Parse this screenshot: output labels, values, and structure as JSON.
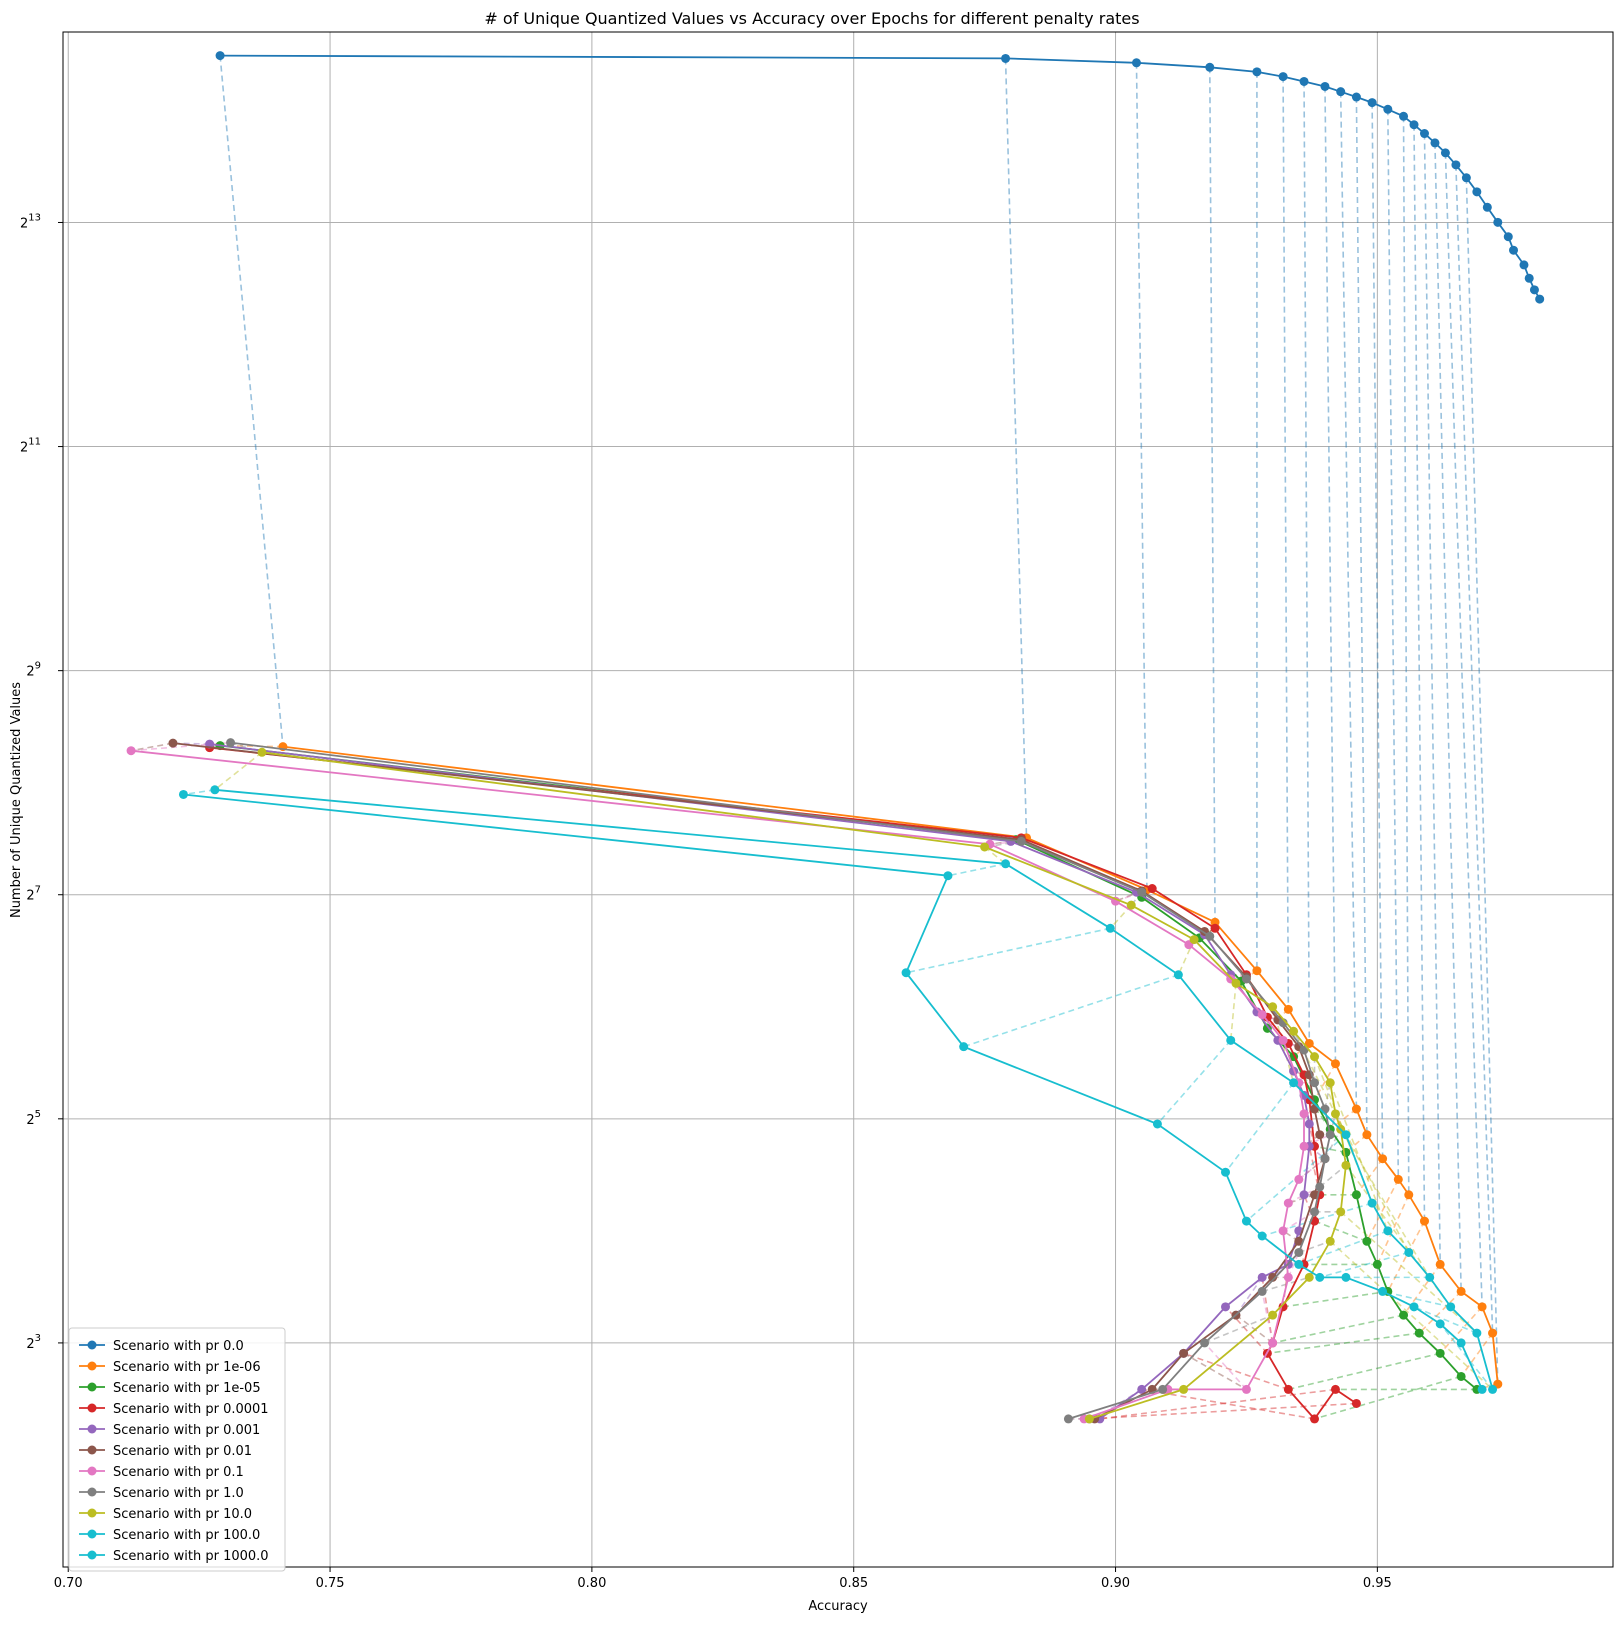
{
  "chart_data": {
    "type": "line",
    "title": "# of Unique Quantized Values vs Accuracy over Epochs for different penalty rates",
    "xlabel": "Accuracy",
    "ylabel": "Number of Unique Quantized Values",
    "xlim": [
      0.699,
      0.995
    ],
    "ylim_log2": [
      1.0,
      14.7
    ],
    "y_scale": "log2",
    "grid": true,
    "legend_position": "lower-left",
    "x_ticks": [
      {
        "value": 0.7,
        "label": "0.70"
      },
      {
        "value": 0.75,
        "label": "0.75"
      },
      {
        "value": 0.8,
        "label": "0.80"
      },
      {
        "value": 0.85,
        "label": "0.85"
      },
      {
        "value": 0.9,
        "label": "0.90"
      },
      {
        "value": 0.95,
        "label": "0.95"
      }
    ],
    "y_ticks": [
      {
        "exp": 3,
        "base": "2",
        "sup": "3"
      },
      {
        "exp": 5,
        "base": "2",
        "sup": "5"
      },
      {
        "exp": 7,
        "base": "2",
        "sup": "7"
      },
      {
        "exp": 9,
        "base": "2",
        "sup": "9"
      },
      {
        "exp": 11,
        "base": "2",
        "sup": "11"
      },
      {
        "exp": 13,
        "base": "2",
        "sup": "13"
      }
    ],
    "series": [
      {
        "name": "Scenario with pr 0.0",
        "color": "#1f77b4",
        "points": [
          [
            0.729,
            23000
          ],
          [
            0.879,
            22600
          ],
          [
            0.904,
            22000
          ],
          [
            0.918,
            21400
          ],
          [
            0.927,
            20800
          ],
          [
            0.932,
            20200
          ],
          [
            0.936,
            19600
          ],
          [
            0.94,
            19000
          ],
          [
            0.943,
            18400
          ],
          [
            0.946,
            17800
          ],
          [
            0.949,
            17200
          ],
          [
            0.952,
            16500
          ],
          [
            0.955,
            15800
          ],
          [
            0.957,
            15000
          ],
          [
            0.959,
            14200
          ],
          [
            0.961,
            13400
          ],
          [
            0.963,
            12600
          ],
          [
            0.965,
            11700
          ],
          [
            0.967,
            10800
          ],
          [
            0.969,
            9900
          ],
          [
            0.971,
            9000
          ],
          [
            0.973,
            8200
          ],
          [
            0.975,
            7500
          ],
          [
            0.976,
            6900
          ],
          [
            0.978,
            6300
          ],
          [
            0.979,
            5800
          ],
          [
            0.98,
            5400
          ],
          [
            0.981,
            5100
          ]
        ]
      },
      {
        "name": "Scenario with pr 1e-06",
        "color": "#ff7f0e",
        "points": [
          [
            0.741,
            320
          ],
          [
            0.883,
            182
          ],
          [
            0.906,
            132
          ],
          [
            0.919,
            108
          ],
          [
            0.927,
            80
          ],
          [
            0.933,
            63
          ],
          [
            0.937,
            51
          ],
          [
            0.942,
            45
          ],
          [
            0.946,
            34
          ],
          [
            0.948,
            29
          ],
          [
            0.951,
            25
          ],
          [
            0.954,
            22
          ],
          [
            0.956,
            20
          ],
          [
            0.959,
            17
          ],
          [
            0.962,
            13
          ],
          [
            0.966,
            11
          ],
          [
            0.97,
            10
          ],
          [
            0.972,
            8.5
          ],
          [
            0.973,
            6.2
          ]
        ]
      },
      {
        "name": "Scenario with pr 1e-05",
        "color": "#2ca02c",
        "points": [
          [
            0.729,
            322
          ],
          [
            0.881,
            180
          ],
          [
            0.905,
            126
          ],
          [
            0.916,
            98
          ],
          [
            0.924,
            75
          ],
          [
            0.929,
            56
          ],
          [
            0.934,
            47
          ],
          [
            0.938,
            36
          ],
          [
            0.941,
            30
          ],
          [
            0.944,
            26
          ],
          [
            0.946,
            20
          ],
          [
            0.948,
            15
          ],
          [
            0.95,
            13
          ],
          [
            0.952,
            11
          ],
          [
            0.955,
            9.5
          ],
          [
            0.958,
            8.5
          ],
          [
            0.962,
            7.5
          ],
          [
            0.966,
            6.5
          ],
          [
            0.969,
            6
          ]
        ]
      },
      {
        "name": "Scenario with pr 0.0001",
        "color": "#d62728",
        "points": [
          [
            0.727,
            318
          ],
          [
            0.882,
            182
          ],
          [
            0.907,
            133
          ],
          [
            0.919,
            104
          ],
          [
            0.925,
            78
          ],
          [
            0.929,
            60
          ],
          [
            0.933,
            51
          ],
          [
            0.936,
            42
          ],
          [
            0.937,
            36
          ],
          [
            0.938,
            27
          ],
          [
            0.939,
            20
          ],
          [
            0.938,
            17
          ],
          [
            0.936,
            13
          ],
          [
            0.932,
            10
          ],
          [
            0.93,
            8
          ],
          [
            0.929,
            7.5
          ],
          [
            0.933,
            6
          ],
          [
            0.938,
            5
          ],
          [
            0.942,
            6
          ],
          [
            0.946,
            5.5
          ]
        ]
      },
      {
        "name": "Scenario with pr 0.001",
        "color": "#9467bd",
        "points": [
          [
            0.727,
            325
          ],
          [
            0.88,
            178
          ],
          [
            0.904,
            130
          ],
          [
            0.917,
            100
          ],
          [
            0.922,
            78
          ],
          [
            0.927,
            62
          ],
          [
            0.931,
            52
          ],
          [
            0.934,
            43
          ],
          [
            0.936,
            37
          ],
          [
            0.937,
            31
          ],
          [
            0.937,
            27
          ],
          [
            0.936,
            20
          ],
          [
            0.935,
            16
          ],
          [
            0.933,
            13
          ],
          [
            0.928,
            12
          ],
          [
            0.921,
            10
          ],
          [
            0.913,
            7.5
          ],
          [
            0.905,
            6
          ],
          [
            0.897,
            5
          ],
          [
            0.895,
            5
          ]
        ]
      },
      {
        "name": "Scenario with pr 0.01",
        "color": "#8c564b",
        "points": [
          [
            0.72,
            327
          ],
          [
            0.882,
            180
          ],
          [
            0.905,
            131
          ],
          [
            0.917,
            102
          ],
          [
            0.925,
            77
          ],
          [
            0.931,
            59
          ],
          [
            0.935,
            50
          ],
          [
            0.937,
            42
          ],
          [
            0.938,
            34
          ],
          [
            0.939,
            29
          ],
          [
            0.94,
            25
          ],
          [
            0.938,
            20
          ],
          [
            0.935,
            15
          ],
          [
            0.93,
            12
          ],
          [
            0.923,
            9.5
          ],
          [
            0.913,
            7.5
          ],
          [
            0.907,
            6
          ],
          [
            0.896,
            5
          ]
        ]
      },
      {
        "name": "Scenario with pr 0.1",
        "color": "#e377c2",
        "points": [
          [
            0.712,
            312
          ],
          [
            0.876,
            175
          ],
          [
            0.9,
            123
          ],
          [
            0.914,
            94
          ],
          [
            0.922,
            76
          ],
          [
            0.928,
            61
          ],
          [
            0.932,
            52
          ],
          [
            0.935,
            40
          ],
          [
            0.936,
            33
          ],
          [
            0.936,
            27
          ],
          [
            0.935,
            22
          ],
          [
            0.933,
            19
          ],
          [
            0.932,
            16
          ],
          [
            0.933,
            12
          ],
          [
            0.93,
            8
          ],
          [
            0.925,
            6
          ],
          [
            0.91,
            6
          ],
          [
            0.894,
            5
          ]
        ]
      },
      {
        "name": "Scenario with pr 1.0",
        "color": "#7f7f7f",
        "points": [
          [
            0.731,
            328
          ],
          [
            0.882,
            178
          ],
          [
            0.905,
            130
          ],
          [
            0.918,
            99
          ],
          [
            0.925,
            76
          ],
          [
            0.932,
            58
          ],
          [
            0.936,
            49
          ],
          [
            0.938,
            40
          ],
          [
            0.94,
            34
          ],
          [
            0.941,
            29
          ],
          [
            0.94,
            25
          ],
          [
            0.939,
            21
          ],
          [
            0.938,
            18
          ],
          [
            0.935,
            14
          ],
          [
            0.928,
            11
          ],
          [
            0.917,
            8
          ],
          [
            0.909,
            6
          ],
          [
            0.891,
            5
          ]
        ]
      },
      {
        "name": "Scenario with pr 10.0",
        "color": "#bcbd22",
        "points": [
          [
            0.737,
            309
          ],
          [
            0.875,
            172
          ],
          [
            0.903,
            120
          ],
          [
            0.915,
            97
          ],
          [
            0.923,
            74
          ],
          [
            0.93,
            64
          ],
          [
            0.934,
            55
          ],
          [
            0.938,
            47
          ],
          [
            0.941,
            40
          ],
          [
            0.942,
            33
          ],
          [
            0.943,
            30
          ],
          [
            0.944,
            24
          ],
          [
            0.943,
            18
          ],
          [
            0.941,
            15
          ],
          [
            0.937,
            12
          ],
          [
            0.93,
            9.5
          ],
          [
            0.913,
            6
          ],
          [
            0.895,
            5
          ]
        ]
      },
      {
        "name": "Scenario with pr 100.0",
        "color": "#17becf",
        "points": [
          [
            0.728,
            245
          ],
          [
            0.879,
            155
          ],
          [
            0.899,
            104
          ],
          [
            0.912,
            78
          ],
          [
            0.922,
            52
          ],
          [
            0.934,
            40
          ],
          [
            0.944,
            29
          ],
          [
            0.949,
            19
          ],
          [
            0.952,
            16
          ],
          [
            0.956,
            14
          ],
          [
            0.96,
            12
          ],
          [
            0.964,
            10
          ],
          [
            0.969,
            8.5
          ],
          [
            0.972,
            6
          ]
        ]
      },
      {
        "name": "Scenario with pr 1000.0",
        "color": "#17becf",
        "points": [
          [
            0.722,
            238
          ],
          [
            0.868,
            144
          ],
          [
            0.86,
            79
          ],
          [
            0.871,
            50
          ],
          [
            0.908,
            31
          ],
          [
            0.921,
            23
          ],
          [
            0.925,
            17
          ],
          [
            0.928,
            15.5
          ],
          [
            0.935,
            13
          ],
          [
            0.939,
            12
          ],
          [
            0.944,
            12
          ],
          [
            0.951,
            11
          ],
          [
            0.957,
            10
          ],
          [
            0.962,
            9
          ],
          [
            0.966,
            8
          ],
          [
            0.97,
            6
          ]
        ]
      }
    ]
  }
}
